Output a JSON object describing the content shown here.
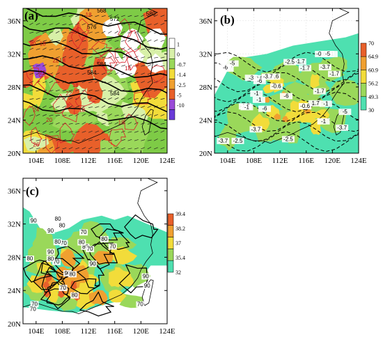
{
  "panels": [
    {
      "label": "(a)",
      "x_ticks": [
        "104E",
        "108E",
        "112E",
        "116E",
        "120E",
        "124E"
      ],
      "y_ticks": [
        "20N",
        "24N",
        "28N",
        "32N",
        "36N"
      ],
      "colorbar": {
        "labels": [
          "1",
          "0",
          "-0.7",
          "-1.4",
          "-2.5",
          "-5",
          "-10"
        ],
        "colors": [
          "#ffffff",
          "#d8f0a8",
          "#9ad85a",
          "#f2dc3a",
          "#f0a030",
          "#e8602a",
          "#9a4ad8",
          "#6a3ad8"
        ]
      },
      "black_contour_labels": [
        "568",
        "572",
        "576",
        "580",
        "584",
        "584",
        "584"
      ],
      "red_contour_labels": [
        "18",
        "18",
        "18",
        "18",
        "18",
        "18",
        "18",
        "18",
        "20",
        "20",
        "22",
        "22",
        "22",
        "24",
        "26"
      ]
    },
    {
      "label": "(b)",
      "x_ticks": [
        "104E",
        "108E",
        "112E",
        "116E",
        "120E",
        "124E"
      ],
      "y_ticks": [
        "20N",
        "24N",
        "28N",
        "32N",
        "36N"
      ],
      "colorbar": {
        "labels": [
          "70",
          "64.9",
          "60.9",
          "56.2",
          "49.3",
          "30"
        ],
        "colors": [
          "#e8602a",
          "#f0a030",
          "#f2dc3a",
          "#9ad85a",
          "#4ee0b0"
        ]
      },
      "contour_labels": [
        "-0.6",
        "-1.7",
        "-2.5",
        "-1.7",
        "-1",
        "-3.7",
        "-0.6",
        "-1",
        "-0.6",
        "-1.7",
        "-1",
        "-2.5",
        "-3.7",
        "-0.6",
        "-1",
        "-1.7",
        "-6",
        "-5",
        "-3.7",
        "-6",
        "-5",
        "-1",
        "-1.7",
        "-3",
        "-3.7",
        "-0.6",
        "-2.5",
        "-1.7",
        "-1",
        "-6",
        "-6",
        "-3.7",
        "-5",
        "-1.7"
      ]
    },
    {
      "label": "(c)",
      "x_ticks": [
        "104E",
        "108E",
        "112E",
        "116E",
        "120E",
        "124E"
      ],
      "y_ticks": [
        "20N",
        "24N",
        "28N",
        "32N",
        "36N"
      ],
      "colorbar": {
        "labels": [
          "39.4",
          "38.2",
          "37",
          "35.4",
          "32"
        ],
        "colors": [
          "#e8602a",
          "#f0a030",
          "#f2dc3a",
          "#9ad85a",
          "#4ee0b0"
        ]
      },
      "contour_labels": [
        "70",
        "70",
        "80",
        "70",
        "90",
        "80",
        "80",
        "70",
        "90",
        "70",
        "80",
        "90",
        "80",
        "90",
        "80",
        "90",
        "80",
        "90",
        "70",
        "80",
        "90",
        "70",
        "80",
        "70",
        "80",
        "70"
      ]
    }
  ]
}
